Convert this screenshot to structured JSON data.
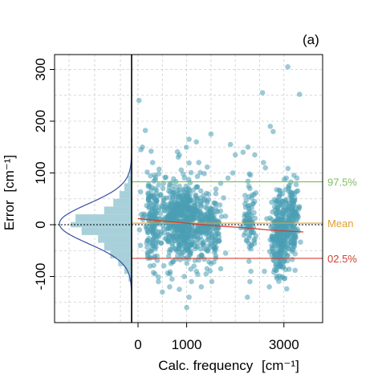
{
  "chart_data": {
    "type": "scatter",
    "panel_label": "(a)",
    "xlabel": "Calc. frequency",
    "xlabel_unit": "[cm⁻¹]",
    "ylabel": "Error",
    "ylabel_unit": "[cm⁻¹]",
    "xlim": [
      -100,
      3400
    ],
    "ylim": [
      -185,
      320
    ],
    "x_ticks": [
      0,
      1000,
      3000
    ],
    "x_tick_labels": [
      "0",
      "1000",
      "3000"
    ],
    "x_grid": [
      0,
      500,
      1000,
      1500,
      2000,
      2500,
      3000
    ],
    "y_ticks": [
      300,
      200,
      100,
      0,
      -100
    ],
    "y_tick_labels": [
      "300",
      "200",
      "100",
      "0",
      "-100"
    ],
    "y_grid": [
      300,
      250,
      200,
      150,
      100,
      50,
      0,
      -50,
      -100,
      -150
    ],
    "grid": true,
    "reference_lines": [
      {
        "label": "97.5%",
        "y": 83,
        "color": "#7fbf5f"
      },
      {
        "label": "Mean",
        "y": 3,
        "color": "#e0a030"
      },
      {
        "label": "02.5%",
        "y": -65,
        "color": "#d04030"
      }
    ],
    "zero_line": {
      "y": 0,
      "style": "dotted"
    },
    "trend_line": {
      "x": [
        0,
        400,
        1000,
        1600,
        2200,
        2800,
        3400
      ],
      "y": [
        12,
        8,
        3,
        -2,
        -6,
        -11,
        -14
      ],
      "color": "#d04030"
    },
    "histogram": {
      "bin_edges": [
        -110,
        -95,
        -80,
        -65,
        -50,
        -35,
        -20,
        -5,
        5,
        20,
        35,
        50,
        65,
        80,
        95,
        110
      ],
      "counts": [
        0.05,
        0.12,
        0.22,
        0.35,
        0.45,
        0.55,
        0.82,
        1.0,
        0.92,
        0.45,
        0.3,
        0.2,
        0.12,
        0.06,
        0.03
      ],
      "color": "#a8d0da"
    },
    "normal_curve": {
      "mean": 2,
      "sd": 38,
      "color": "#3a4fa0"
    },
    "point_color": "#4a9fb5",
    "points": [
      {
        "x": 20,
        "y": 240
      },
      {
        "x": 60,
        "y": 145
      },
      {
        "x": 90,
        "y": 150
      },
      {
        "x": 150,
        "y": 182
      },
      {
        "x": 3080,
        "y": 305
      },
      {
        "x": 2560,
        "y": 255
      },
      {
        "x": 3320,
        "y": 252
      },
      {
        "x": 2720,
        "y": 190
      },
      {
        "x": 2780,
        "y": 180
      },
      {
        "x": 1500,
        "y": 175
      },
      {
        "x": 1050,
        "y": 165
      },
      {
        "x": 1200,
        "y": 160
      },
      {
        "x": 1250,
        "y": 120
      },
      {
        "x": 1900,
        "y": 155
      },
      {
        "x": 2160,
        "y": 140
      },
      {
        "x": 2260,
        "y": 150
      },
      {
        "x": 2400,
        "y": 135
      },
      {
        "x": 2000,
        "y": 135
      },
      {
        "x": 300,
        "y": 120
      },
      {
        "x": 850,
        "y": 135
      },
      {
        "x": 1950,
        "y": 100
      },
      {
        "x": 1850,
        "y": 90
      },
      {
        "x": 2580,
        "y": 120
      },
      {
        "x": 2620,
        "y": 110
      },
      {
        "x": 3050,
        "y": 90
      },
      {
        "x": 3100,
        "y": 70
      },
      {
        "x": 2900,
        "y": 55
      },
      {
        "x": 2400,
        "y": 45
      },
      {
        "x": 2300,
        "y": 70
      },
      {
        "x": 2200,
        "y": 40
      },
      {
        "x": 1700,
        "y": 80
      },
      {
        "x": 1600,
        "y": 60
      },
      {
        "x": 30,
        "y": -10
      },
      {
        "x": 70,
        "y": 20
      },
      {
        "x": 50,
        "y": -40
      },
      {
        "x": 100,
        "y": 10
      },
      {
        "x": 200,
        "y": -30
      },
      {
        "x": 250,
        "y": -80
      },
      {
        "x": 350,
        "y": -95
      },
      {
        "x": 420,
        "y": -110
      },
      {
        "x": 500,
        "y": -130
      },
      {
        "x": 650,
        "y": -120
      },
      {
        "x": 700,
        "y": -105
      },
      {
        "x": 850,
        "y": -125
      },
      {
        "x": 950,
        "y": -100
      },
      {
        "x": 1000,
        "y": -160
      },
      {
        "x": 1050,
        "y": -140
      },
      {
        "x": 1100,
        "y": -110
      },
      {
        "x": 1150,
        "y": -80
      },
      {
        "x": 1200,
        "y": -90
      },
      {
        "x": 1300,
        "y": -120
      },
      {
        "x": 1400,
        "y": -95
      },
      {
        "x": 1500,
        "y": -75
      },
      {
        "x": 1600,
        "y": -60
      },
      {
        "x": 1800,
        "y": -55
      },
      {
        "x": 1700,
        "y": -85
      },
      {
        "x": 2250,
        "y": -140
      },
      {
        "x": 2300,
        "y": -110
      },
      {
        "x": 2320,
        "y": -90
      },
      {
        "x": 2750,
        "y": -40
      },
      {
        "x": 2800,
        "y": -70
      },
      {
        "x": 2850,
        "y": -100
      },
      {
        "x": 2900,
        "y": -80
      },
      {
        "x": 2950,
        "y": -50
      },
      {
        "x": 3000,
        "y": -20
      },
      {
        "x": 3050,
        "y": -10
      },
      {
        "x": 3100,
        "y": 10
      },
      {
        "x": 3150,
        "y": 30
      },
      {
        "x": 3200,
        "y": 45
      },
      {
        "x": 3250,
        "y": 20
      },
      {
        "x": 2700,
        "y": -120
      },
      {
        "x": 2600,
        "y": -90
      }
    ],
    "cluster_points": [
      {
        "cx": 900,
        "cy": 10,
        "sx": 400,
        "sy": 38,
        "n": 600,
        "seed": 11
      },
      {
        "cx": 300,
        "cy": 15,
        "sx": 150,
        "sy": 40,
        "n": 140,
        "seed": 23
      },
      {
        "cx": 1500,
        "cy": 0,
        "sx": 200,
        "sy": 35,
        "n": 150,
        "seed": 37
      },
      {
        "cx": 2300,
        "cy": 5,
        "sx": 150,
        "sy": 28,
        "n": 80,
        "seed": 41
      },
      {
        "cx": 2900,
        "cy": -20,
        "sx": 150,
        "sy": 38,
        "n": 260,
        "seed": 53
      },
      {
        "cx": 3150,
        "cy": 10,
        "sx": 150,
        "sy": 35,
        "n": 140,
        "seed": 67
      }
    ]
  }
}
